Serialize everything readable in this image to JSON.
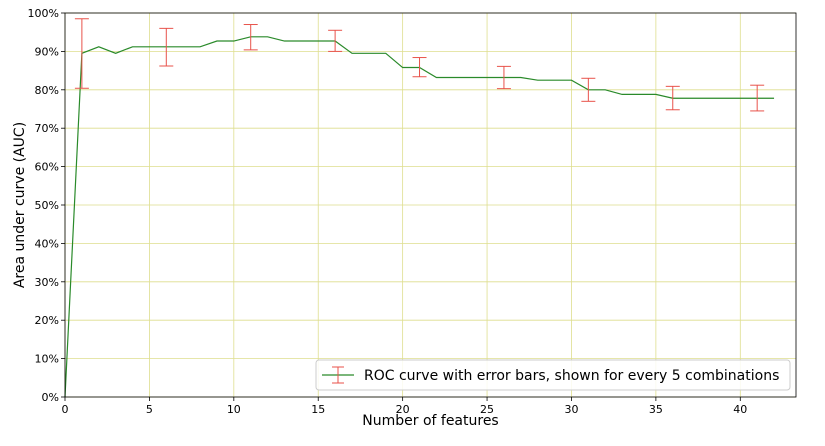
{
  "chart_data": {
    "type": "line",
    "xlabel": "Number of features",
    "ylabel": "Area under curve (AUC)",
    "xlim": [
      0,
      43.3
    ],
    "ylim": [
      0,
      1.0
    ],
    "x_ticks": [
      0,
      5,
      10,
      15,
      20,
      25,
      30,
      35,
      40
    ],
    "y_ticks": [
      0,
      0.1,
      0.2,
      0.3,
      0.4,
      0.5,
      0.6,
      0.7,
      0.8,
      0.9,
      1.0
    ],
    "y_tick_labels": [
      "0%",
      "10%",
      "20%",
      "30%",
      "40%",
      "50%",
      "60%",
      "70%",
      "80%",
      "90%",
      "100%"
    ],
    "x_tick_labels": [
      "0",
      "5",
      "10",
      "15",
      "20",
      "25",
      "30",
      "35",
      "40"
    ],
    "grid": true,
    "legend_position": "bottom-right",
    "series": [
      {
        "name": "ROC curve with error bars, shown for every 5 combinations",
        "color": "#2a8a2a",
        "errorbar_color": "#e8524a",
        "x": [
          0,
          1,
          2,
          3,
          4,
          5,
          6,
          7,
          8,
          9,
          10,
          11,
          12,
          13,
          14,
          15,
          16,
          17,
          18,
          19,
          20,
          21,
          22,
          23,
          24,
          25,
          26,
          27,
          28,
          29,
          30,
          31,
          32,
          33,
          34,
          35,
          36,
          37,
          38,
          39,
          40,
          41,
          42
        ],
        "y": [
          0,
          0.895,
          0.912,
          0.895,
          0.912,
          0.912,
          0.912,
          0.912,
          0.912,
          0.927,
          0.927,
          0.938,
          0.938,
          0.927,
          0.927,
          0.927,
          0.927,
          0.895,
          0.895,
          0.895,
          0.858,
          0.858,
          0.832,
          0.832,
          0.832,
          0.832,
          0.832,
          0.832,
          0.825,
          0.825,
          0.825,
          0.8,
          0.8,
          0.788,
          0.788,
          0.788,
          0.778,
          0.778,
          0.778,
          0.778,
          0.778,
          0.778,
          0.778
        ],
        "errorbars": [
          {
            "x": 1,
            "lower": 0.804,
            "upper": 0.985
          },
          {
            "x": 6,
            "lower": 0.862,
            "upper": 0.96
          },
          {
            "x": 11,
            "lower": 0.904,
            "upper": 0.97
          },
          {
            "x": 16,
            "lower": 0.9,
            "upper": 0.955
          },
          {
            "x": 21,
            "lower": 0.834,
            "upper": 0.884
          },
          {
            "x": 26,
            "lower": 0.803,
            "upper": 0.861
          },
          {
            "x": 31,
            "lower": 0.77,
            "upper": 0.83
          },
          {
            "x": 36,
            "lower": 0.748,
            "upper": 0.809
          },
          {
            "x": 41,
            "lower": 0.745,
            "upper": 0.812
          }
        ]
      }
    ]
  }
}
